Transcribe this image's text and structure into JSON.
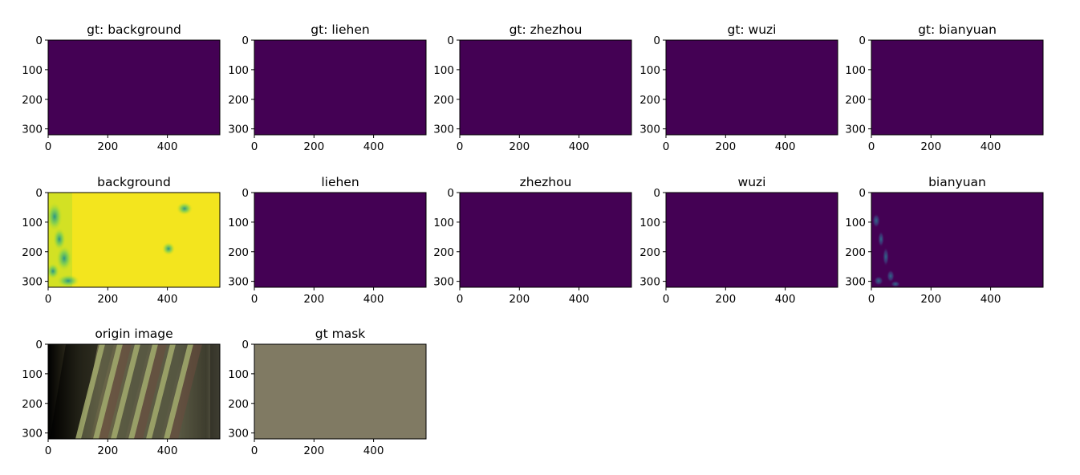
{
  "chart_data": {
    "type": "heatmap",
    "panels": [
      {
        "title": "gt: background",
        "kind": "flat",
        "color": "#440154",
        "xticks": [
          "0",
          "200",
          "400"
        ],
        "yticks": [
          "0",
          "100",
          "200",
          "300"
        ],
        "xlim": [
          0,
          576
        ],
        "ylim": [
          320,
          0
        ]
      },
      {
        "title": "gt: liehen",
        "kind": "flat",
        "color": "#440154",
        "xticks": [
          "0",
          "200",
          "400"
        ],
        "yticks": [
          "0",
          "100",
          "200",
          "300"
        ],
        "xlim": [
          0,
          576
        ],
        "ylim": [
          320,
          0
        ]
      },
      {
        "title": "gt: zhezhou",
        "kind": "flat",
        "color": "#440154",
        "xticks": [
          "0",
          "200",
          "400"
        ],
        "yticks": [
          "0",
          "100",
          "200",
          "300"
        ],
        "xlim": [
          0,
          576
        ],
        "ylim": [
          320,
          0
        ]
      },
      {
        "title": "gt: wuzi",
        "kind": "flat",
        "color": "#440154",
        "xticks": [
          "0",
          "200",
          "400"
        ],
        "yticks": [
          "0",
          "100",
          "200",
          "300"
        ],
        "xlim": [
          0,
          576
        ],
        "ylim": [
          320,
          0
        ]
      },
      {
        "title": "gt: bianyuan",
        "kind": "flat",
        "color": "#440154",
        "xticks": [
          "0",
          "200",
          "400"
        ],
        "yticks": [
          "0",
          "100",
          "200",
          "300"
        ],
        "xlim": [
          0,
          576
        ],
        "ylim": [
          320,
          0
        ]
      },
      {
        "title": "background",
        "kind": "background_pred",
        "color": "#f3e51e",
        "xticks": [
          "0",
          "200",
          "400"
        ],
        "yticks": [
          "0",
          "100",
          "200",
          "300"
        ],
        "xlim": [
          0,
          576
        ],
        "ylim": [
          320,
          0
        ]
      },
      {
        "title": "liehen",
        "kind": "flat",
        "color": "#440154",
        "xticks": [
          "0",
          "200",
          "400"
        ],
        "yticks": [
          "0",
          "100",
          "200",
          "300"
        ],
        "xlim": [
          0,
          576
        ],
        "ylim": [
          320,
          0
        ]
      },
      {
        "title": "zhezhou",
        "kind": "flat",
        "color": "#440154",
        "xticks": [
          "0",
          "200",
          "400"
        ],
        "yticks": [
          "0",
          "100",
          "200",
          "300"
        ],
        "xlim": [
          0,
          576
        ],
        "ylim": [
          320,
          0
        ]
      },
      {
        "title": "wuzi",
        "kind": "flat",
        "color": "#440154",
        "xticks": [
          "0",
          "200",
          "400"
        ],
        "yticks": [
          "0",
          "100",
          "200",
          "300"
        ],
        "xlim": [
          0,
          576
        ],
        "ylim": [
          320,
          0
        ]
      },
      {
        "title": "bianyuan",
        "kind": "bianyuan_pred",
        "color": "#440154",
        "xticks": [
          "0",
          "200",
          "400"
        ],
        "yticks": [
          "0",
          "100",
          "200",
          "300"
        ],
        "xlim": [
          0,
          576
        ],
        "ylim": [
          320,
          0
        ]
      },
      {
        "title": "origin image",
        "kind": "origin_image",
        "color": "#5a5a3c",
        "xticks": [
          "0",
          "200",
          "400"
        ],
        "yticks": [
          "0",
          "100",
          "200",
          "300"
        ],
        "xlim": [
          0,
          576
        ],
        "ylim": [
          320,
          0
        ]
      },
      {
        "title": "gt mask",
        "kind": "flat",
        "color": "#807a63",
        "xticks": [
          "0",
          "200",
          "400"
        ],
        "yticks": [
          "0",
          "100",
          "200",
          "300"
        ],
        "xlim": [
          0,
          576
        ],
        "ylim": [
          320,
          0
        ]
      }
    ],
    "colors": {
      "viridis_low": "#440154",
      "viridis_high": "#fde725",
      "mask_gray": "#807a63"
    }
  }
}
